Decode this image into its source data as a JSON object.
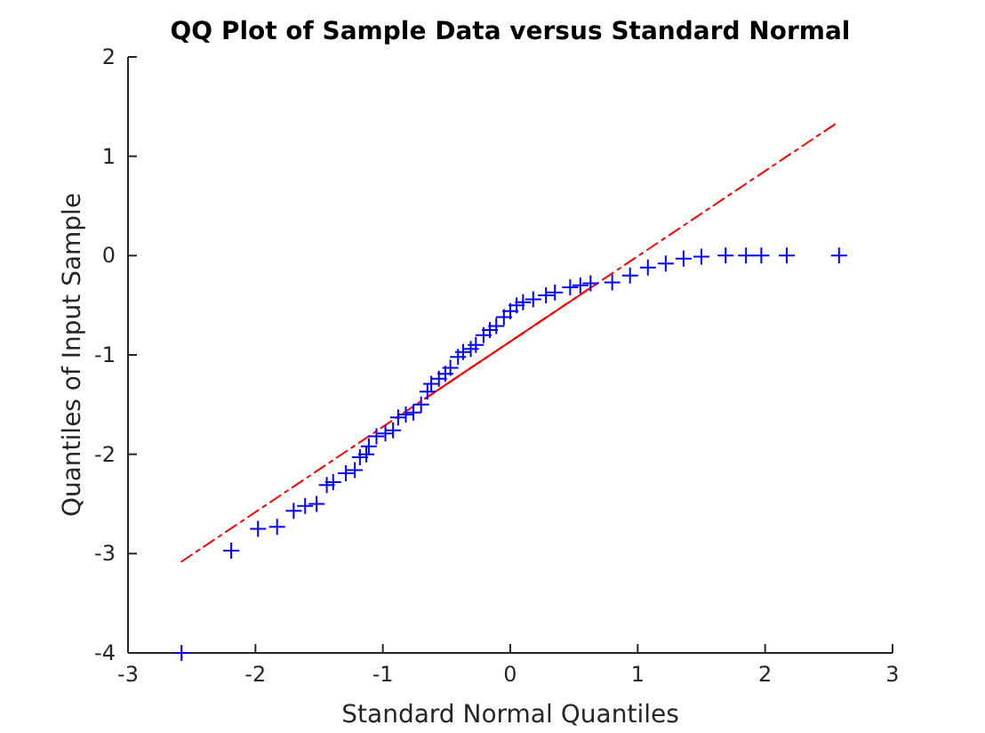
{
  "chart_data": {
    "type": "scatter",
    "title": "QQ Plot of Sample Data versus Standard Normal",
    "xlabel": "Standard Normal Quantiles",
    "ylabel": "Quantiles of Input Sample",
    "xlim": [
      -3,
      3
    ],
    "ylim": [
      -4,
      2
    ],
    "xticks": [
      -3,
      -2,
      -1,
      0,
      1,
      2,
      3
    ],
    "yticks": [
      -4,
      -3,
      -2,
      -1,
      0,
      1,
      2
    ],
    "grid": false,
    "series": [
      {
        "type": "line",
        "color": "#ff0000",
        "line_style": "dashed",
        "marker": "none",
        "x": [
          -2.58,
          2.58
        ],
        "values": [
          -3.08,
          1.35
        ]
      },
      {
        "type": "line",
        "color": "#ff0000",
        "line_style": "solid",
        "marker": "none",
        "x": [
          -0.67,
          0.67
        ],
        "values": [
          -1.44,
          -0.29
        ]
      },
      {
        "color": "#0000ff",
        "marker": "cross",
        "x": [
          -2.58,
          -2.19,
          -1.98,
          -1.83,
          -1.7,
          -1.61,
          -1.52,
          -1.44,
          -1.39,
          -1.29,
          -1.22,
          -1.18,
          -1.13,
          -1.11,
          -1.05,
          -0.98,
          -0.92,
          -0.88,
          -0.82,
          -0.76,
          -0.7,
          -0.65,
          -0.62,
          -0.56,
          -0.51,
          -0.47,
          -0.41,
          -0.37,
          -0.31,
          -0.27,
          -0.21,
          -0.16,
          -0.11,
          -0.05,
          0.0,
          0.05,
          0.1,
          0.18,
          0.28,
          0.35,
          0.47,
          0.55,
          0.63,
          0.8,
          0.94,
          1.08,
          1.22,
          1.36,
          1.5,
          1.69,
          1.85,
          1.97,
          2.17,
          2.58
        ],
        "values": [
          -4.0,
          -2.97,
          -2.75,
          -2.73,
          -2.57,
          -2.52,
          -2.5,
          -2.31,
          -2.28,
          -2.19,
          -2.16,
          -2.03,
          -2.0,
          -1.92,
          -1.82,
          -1.79,
          -1.76,
          -1.63,
          -1.6,
          -1.58,
          -1.5,
          -1.37,
          -1.29,
          -1.24,
          -1.19,
          -1.13,
          -1.02,
          -0.97,
          -0.94,
          -0.9,
          -0.8,
          -0.75,
          -0.71,
          -0.62,
          -0.56,
          -0.5,
          -0.47,
          -0.44,
          -0.4,
          -0.37,
          -0.32,
          -0.3,
          -0.28,
          -0.27,
          -0.2,
          -0.12,
          -0.08,
          -0.03,
          -0.01,
          0.0,
          0.0,
          0.0,
          0.0,
          0.0
        ]
      }
    ]
  }
}
